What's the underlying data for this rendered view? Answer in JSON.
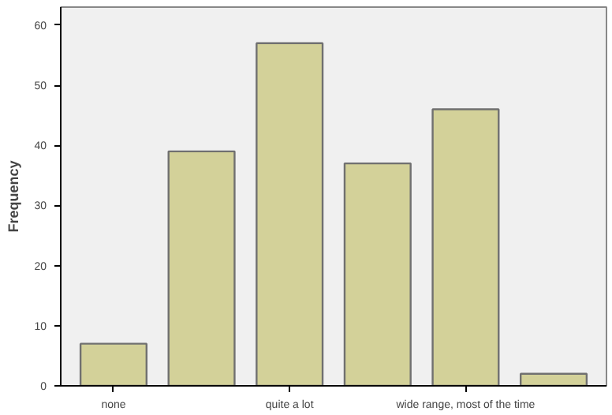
{
  "chart_data": {
    "type": "bar",
    "ylabel": "Frequency",
    "categories": [
      "none",
      null,
      "quite a lot",
      null,
      "wide range, most of the time",
      null
    ],
    "values": [
      7,
      39,
      57,
      37,
      46,
      2
    ],
    "color": "#d3d199",
    "ylim": [
      0,
      63
    ],
    "yticks": [
      0,
      10,
      20,
      30,
      40,
      50,
      60
    ],
    "grid": false
  }
}
